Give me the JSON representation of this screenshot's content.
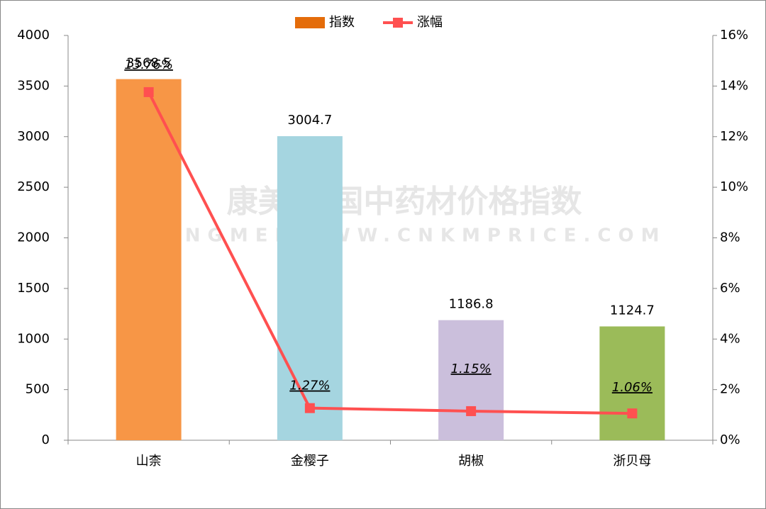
{
  "chart_data": {
    "type": "bar",
    "categories": [
      "山柰",
      "金樱子",
      "胡椒",
      "浙贝母"
    ],
    "series": [
      {
        "name": "指数",
        "type": "bar",
        "color": "#e46c0a",
        "colors": [
          "#f79646",
          "#a5d5e0",
          "#cbbfdc",
          "#9bbb59"
        ],
        "values": [
          3568.5,
          3004.7,
          1186.8,
          1124.7
        ]
      },
      {
        "name": "涨幅",
        "type": "line",
        "axis": "y2",
        "color": "#ff5050",
        "values": [
          13.76,
          1.27,
          1.15,
          1.06
        ],
        "value_labels": [
          "13.76%",
          "1.27%",
          "1.15%",
          "1.06%"
        ]
      }
    ],
    "ylim": [
      0,
      4000
    ],
    "yticks": [
      0,
      500,
      1000,
      1500,
      2000,
      2500,
      3000,
      3500,
      4000
    ],
    "y2lim": [
      0,
      16
    ],
    "y2ticks": [
      {
        "value": 0,
        "label": "0%"
      },
      {
        "value": 2,
        "label": "2%"
      },
      {
        "value": 4,
        "label": "4%"
      },
      {
        "value": 6,
        "label": "6%"
      },
      {
        "value": 8,
        "label": "8%"
      },
      {
        "value": 10,
        "label": "10%"
      },
      {
        "value": 12,
        "label": "12%"
      },
      {
        "value": 14,
        "label": "14%"
      },
      {
        "value": 16,
        "label": "16%"
      }
    ],
    "value_label_color": "#ff0000",
    "legend": "top",
    "watermark": [
      "康美·中国中药材价格指数",
      "KANGMEI WWW.CNKMPRICE.COM"
    ]
  }
}
